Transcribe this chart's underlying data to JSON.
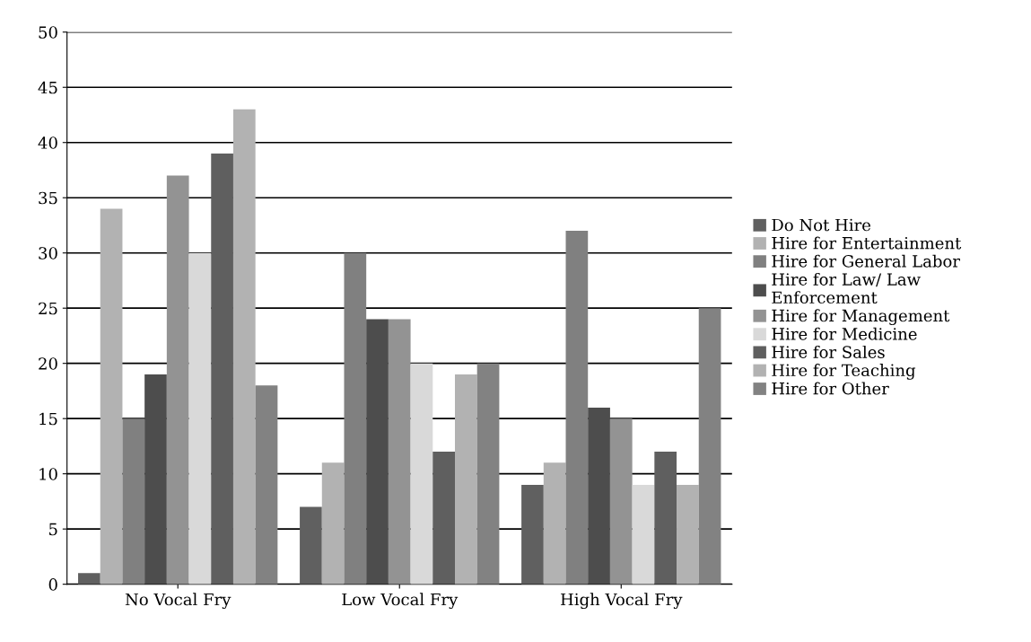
{
  "chart_data": {
    "type": "bar",
    "categories": [
      "No Vocal Fry",
      "Low Vocal Fry",
      "High Vocal Fry"
    ],
    "series": [
      {
        "name": "Do Not Hire",
        "color": "#606060",
        "values": [
          1,
          7,
          9
        ]
      },
      {
        "name": "Hire for Entertainment",
        "color": "#b2b2b2",
        "values": [
          34,
          11,
          11
        ]
      },
      {
        "name": "Hire for General Labor",
        "color": "#808080",
        "values": [
          15,
          30,
          32
        ]
      },
      {
        "name": "Hire for Law/ Law\nEnforcement",
        "color": "#4d4d4d",
        "values": [
          19,
          24,
          16
        ]
      },
      {
        "name": "Hire for Management",
        "color": "#939393",
        "values": [
          37,
          24,
          15
        ]
      },
      {
        "name": "Hire for Medicine",
        "color": "#d9d9d9",
        "values": [
          30,
          20,
          9
        ]
      },
      {
        "name": "Hire for Sales",
        "color": "#5f5f5f",
        "values": [
          39,
          12,
          12
        ]
      },
      {
        "name": "Hire for Teaching",
        "color": "#b2b2b2",
        "values": [
          43,
          19,
          9
        ]
      },
      {
        "name": "Hire for Other",
        "color": "#828282",
        "values": [
          18,
          20,
          25
        ]
      }
    ],
    "ylim": [
      0,
      50
    ],
    "yticks": [
      0,
      5,
      10,
      15,
      20,
      25,
      30,
      35,
      40,
      45,
      50
    ],
    "grid": "y",
    "legend": "right"
  }
}
